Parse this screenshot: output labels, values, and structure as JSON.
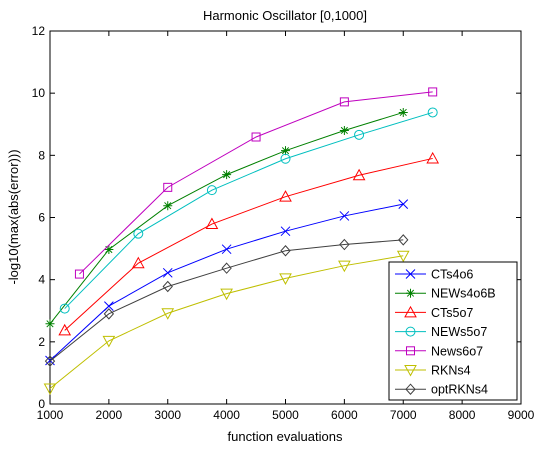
{
  "chart_data": {
    "type": "line",
    "title": "Harmonic Oscillator [0,1000]",
    "xlabel": "function evaluations",
    "ylabel": "-log10(max(abs(error)))",
    "xlim": [
      1000,
      9000
    ],
    "ylim": [
      0,
      12
    ],
    "xticks": [
      1000,
      2000,
      3000,
      4000,
      5000,
      6000,
      7000,
      8000,
      9000
    ],
    "yticks": [
      0,
      2,
      4,
      6,
      8,
      10,
      12
    ],
    "xtick_labels": [
      "1000",
      "2000",
      "3000",
      "4000",
      "5000",
      "6000",
      "7000",
      "8000",
      "9000"
    ],
    "ytick_labels": [
      "0",
      "2",
      "4",
      "6",
      "8",
      "10",
      "12"
    ],
    "grid": false,
    "legend_position": "bottom-right",
    "series": [
      {
        "name": "CTs4o6",
        "color": "#0000ff",
        "marker": "x",
        "x": [
          1000,
          2000,
          3000,
          4000,
          5000,
          6000,
          7000
        ],
        "y": [
          1.4,
          3.15,
          4.22,
          4.98,
          5.56,
          6.05,
          6.43
        ]
      },
      {
        "name": "NEWs4o6B",
        "color": "#008000",
        "marker": "asterisk",
        "x": [
          1000,
          2000,
          3000,
          4000,
          5000,
          6000,
          7000
        ],
        "y": [
          2.58,
          4.97,
          6.38,
          7.38,
          8.15,
          8.8,
          9.38
        ]
      },
      {
        "name": "CTs5o7",
        "color": "#ff0000",
        "marker": "triangle-up",
        "x": [
          1250,
          2500,
          3750,
          5000,
          6250,
          7500
        ],
        "y": [
          2.37,
          4.53,
          5.79,
          6.67,
          7.36,
          7.9
        ]
      },
      {
        "name": "NEWs5o7",
        "color": "#00bfbf",
        "marker": "circle",
        "x": [
          1250,
          2500,
          3750,
          5000,
          6250,
          7500
        ],
        "y": [
          3.07,
          5.48,
          6.88,
          7.89,
          8.66,
          9.38
        ]
      },
      {
        "name": "News6o7",
        "color": "#bf00bf",
        "marker": "square",
        "x": [
          1500,
          3000,
          4500,
          6000,
          7500
        ],
        "y": [
          4.18,
          6.97,
          8.59,
          9.72,
          10.04
        ]
      },
      {
        "name": "RKNs4",
        "color": "#bfbf00",
        "marker": "triangle-down",
        "x": [
          1000,
          2000,
          3000,
          4000,
          5000,
          6000,
          7000
        ],
        "y": [
          0.5,
          2.03,
          2.92,
          3.55,
          4.04,
          4.45,
          4.77
        ]
      },
      {
        "name": "optRKNs4",
        "color": "#404040",
        "marker": "diamond",
        "x": [
          1000,
          2000,
          3000,
          4000,
          5000,
          6000,
          7000
        ],
        "y": [
          1.38,
          2.9,
          3.78,
          4.37,
          4.93,
          5.13,
          5.28
        ]
      }
    ]
  }
}
